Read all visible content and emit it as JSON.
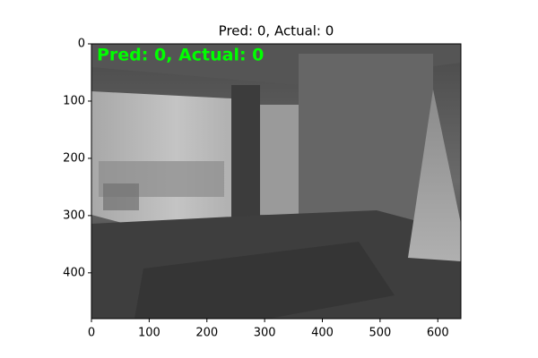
{
  "chart_data": {
    "type": "image",
    "title": "Pred: 0, Actual: 0",
    "annotation": "Pred: 0, Actual: 0",
    "annotation_color": "#00ff00",
    "xlim": [
      0,
      640
    ],
    "ylim": [
      480,
      0
    ],
    "xticks": [
      0,
      100,
      200,
      300,
      400,
      500,
      600
    ],
    "yticks": [
      0,
      100,
      200,
      300,
      400
    ]
  }
}
